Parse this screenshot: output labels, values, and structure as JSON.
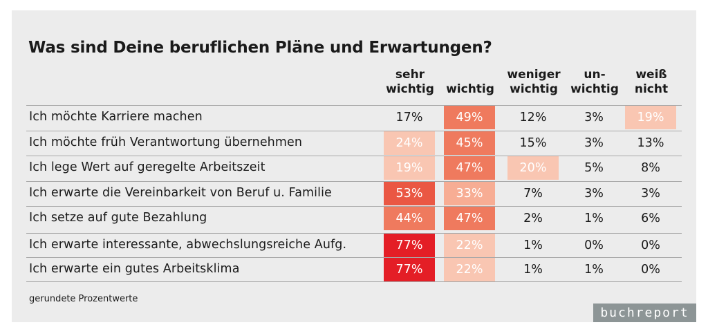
{
  "title": "Was sind Deine beruflichen Pläne und Erwartungen?",
  "footnote": "gerundete Prozentwerte",
  "logo": "buchreport",
  "chart_data": {
    "type": "table",
    "title": "Was sind Deine beruflichen Pläne und Erwartungen?",
    "columns": [
      {
        "line1": "sehr",
        "line2": "wichtig"
      },
      {
        "line1": "",
        "line2": "wichtig"
      },
      {
        "line1": "weniger",
        "line2": "wichtig"
      },
      {
        "line1": "un-",
        "line2": "wichtig"
      },
      {
        "line1": "weiß",
        "line2": "nicht"
      }
    ],
    "rows": [
      {
        "label": "Ich möchte Karriere machen",
        "values": [
          17,
          49,
          12,
          3,
          19
        ]
      },
      {
        "label": "Ich möchte früh Verantwortung übernehmen",
        "values": [
          24,
          45,
          15,
          3,
          13
        ]
      },
      {
        "label": "Ich lege Wert auf geregelte Arbeitszeit",
        "values": [
          19,
          47,
          20,
          5,
          8
        ]
      },
      {
        "label": "Ich erwarte die Vereinbarkeit von Beruf u. Familie",
        "values": [
          53,
          33,
          7,
          3,
          3
        ]
      },
      {
        "label": "Ich setze auf gute Bezahlung",
        "values": [
          44,
          47,
          2,
          1,
          6
        ]
      },
      {
        "label": "Ich erwarte interessante, abwechslungsreiche Aufg.",
        "values": [
          77,
          22,
          1,
          0,
          0
        ]
      },
      {
        "label": "Ich erwarte ein gutes Arbeitsklima",
        "values": [
          77,
          22,
          1,
          1,
          0
        ]
      }
    ],
    "unit": "%",
    "heat_colors": [
      {
        "min": 70,
        "color": "#e41e26"
      },
      {
        "min": 50,
        "color": "#ea5743"
      },
      {
        "min": 40,
        "color": "#ef7a5e"
      },
      {
        "min": 30,
        "color": "#f7ad94"
      },
      {
        "min": 19,
        "color": "#f9c6b2"
      }
    ]
  }
}
